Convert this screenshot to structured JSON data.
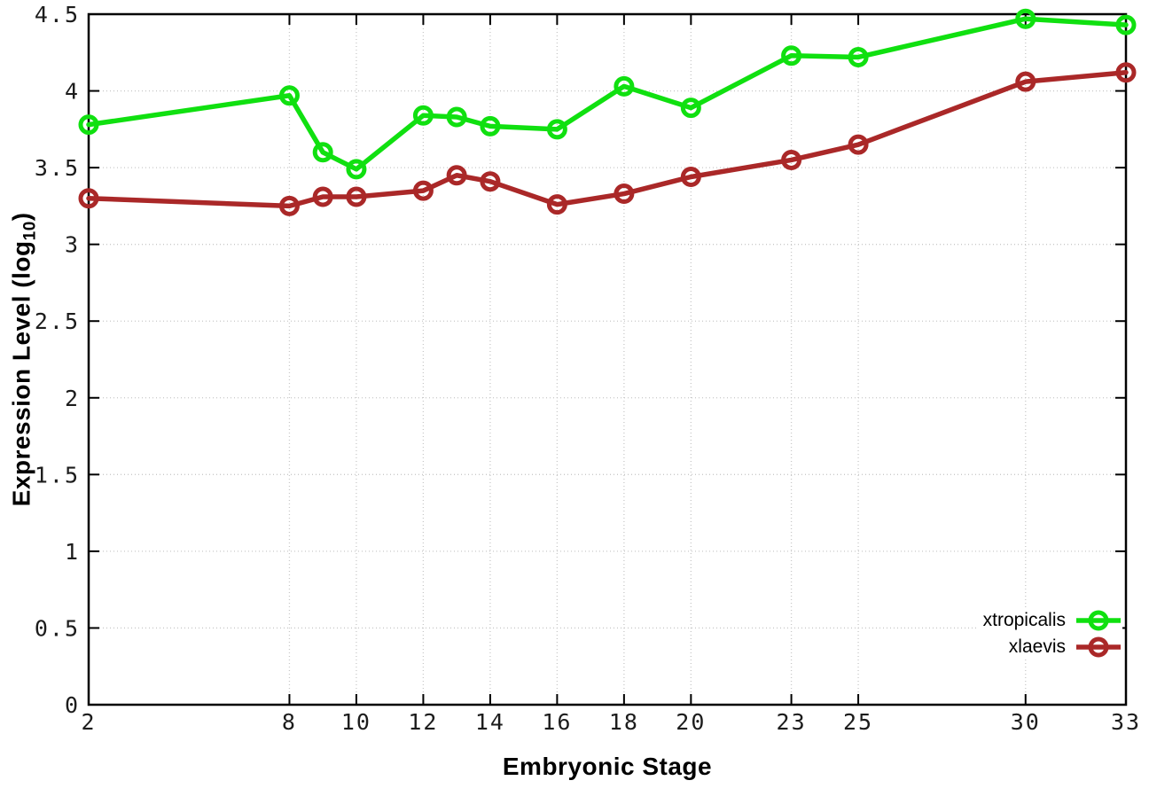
{
  "chart_data": {
    "type": "line",
    "x": [
      2,
      8,
      9,
      10,
      12,
      13,
      14,
      16,
      18,
      20,
      23,
      25,
      30,
      33
    ],
    "series": [
      {
        "name": "xtropicalis",
        "color": "#10e010",
        "values": [
          3.78,
          3.97,
          3.6,
          3.49,
          3.84,
          3.83,
          3.77,
          3.75,
          4.03,
          3.89,
          4.23,
          4.22,
          4.47,
          4.43
        ]
      },
      {
        "name": "xlaevis",
        "color": "#aa2828",
        "values": [
          3.3,
          3.25,
          3.31,
          3.31,
          3.35,
          3.45,
          3.41,
          3.26,
          3.33,
          3.44,
          3.55,
          3.65,
          4.06,
          4.12
        ]
      }
    ],
    "title": "",
    "xlabel": "Embryonic Stage",
    "ylabel": "Expression Level (log10)",
    "ylabel_prefix": "Expression Level (log",
    "ylabel_sub": "10",
    "ylabel_suffix": ")",
    "xlim": [
      2,
      33
    ],
    "ylim": [
      0,
      4.5
    ],
    "xticks": [
      2,
      8,
      10,
      12,
      14,
      16,
      18,
      20,
      23,
      25,
      30,
      33
    ],
    "yticks": [
      0,
      0.5,
      1,
      1.5,
      2,
      2.5,
      3,
      3.5,
      4,
      4.5
    ],
    "ytick_labels": [
      "0",
      "0.5",
      "1",
      "1.5",
      "2",
      "2.5",
      "3",
      "3.5",
      "4",
      "4.5"
    ],
    "grid": true,
    "legend_position": "bottom-right-inside",
    "marker": "open-circle"
  },
  "styles": {
    "background": "#ffffff",
    "border_color": "#000000",
    "grid_color": "#c8c8c8",
    "tick_label_color": "#1c1c1c",
    "xtropicalis_color": "#10e010",
    "xlaevis_color": "#aa2828"
  }
}
